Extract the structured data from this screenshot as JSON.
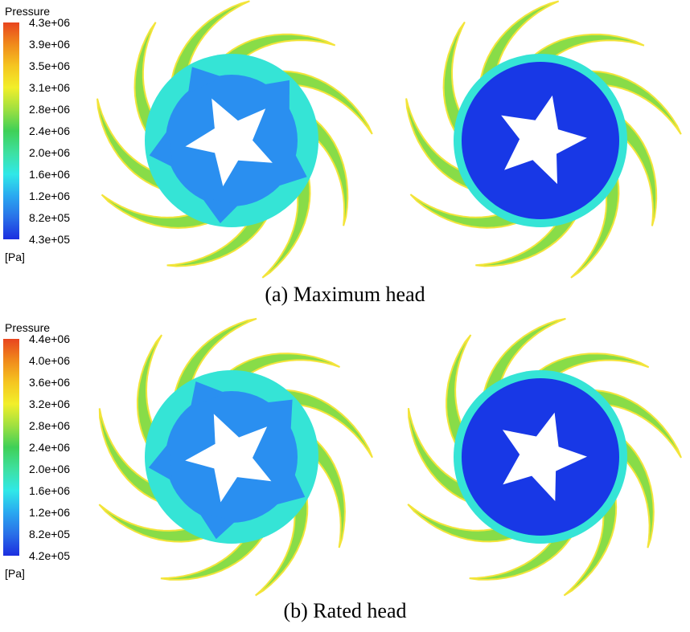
{
  "panels": [
    {
      "legend_title": "Pressure",
      "ticks": [
        "4.3e+06",
        "3.9e+06",
        "3.5e+06",
        "3.1e+06",
        "2.8e+06",
        "2.4e+06",
        "2.0e+06",
        "1.6e+06",
        "1.2e+06",
        "8.2e+05",
        "4.3e+05"
      ],
      "unit": "[Pa]",
      "caption": "(a) Maximum head"
    },
    {
      "legend_title": "Pressure",
      "ticks": [
        "4.4e+06",
        "4.0e+06",
        "3.6e+06",
        "3.2e+06",
        "2.8e+06",
        "2.4e+06",
        "2.0e+06",
        "1.6e+06",
        "1.2e+06",
        "8.2e+05",
        "4.2e+05"
      ],
      "unit": "[Pa]",
      "caption": "(b) Rated head"
    }
  ],
  "colormap": [
    "#e8451e",
    "#f08a1c",
    "#f5c520",
    "#f2ef2a",
    "#9fe040",
    "#3fd057",
    "#3ee0a0",
    "#30e8e8",
    "#2aa8f0",
    "#2a70e8",
    "#1c2ee0"
  ],
  "rotor_colors": {
    "outer_edge": "#f3e43a",
    "blade": "#88dc48",
    "mid": "#35e4d6",
    "inner": "#2a8ff0",
    "eye": "#1838e6",
    "hub": "#ffffff"
  }
}
